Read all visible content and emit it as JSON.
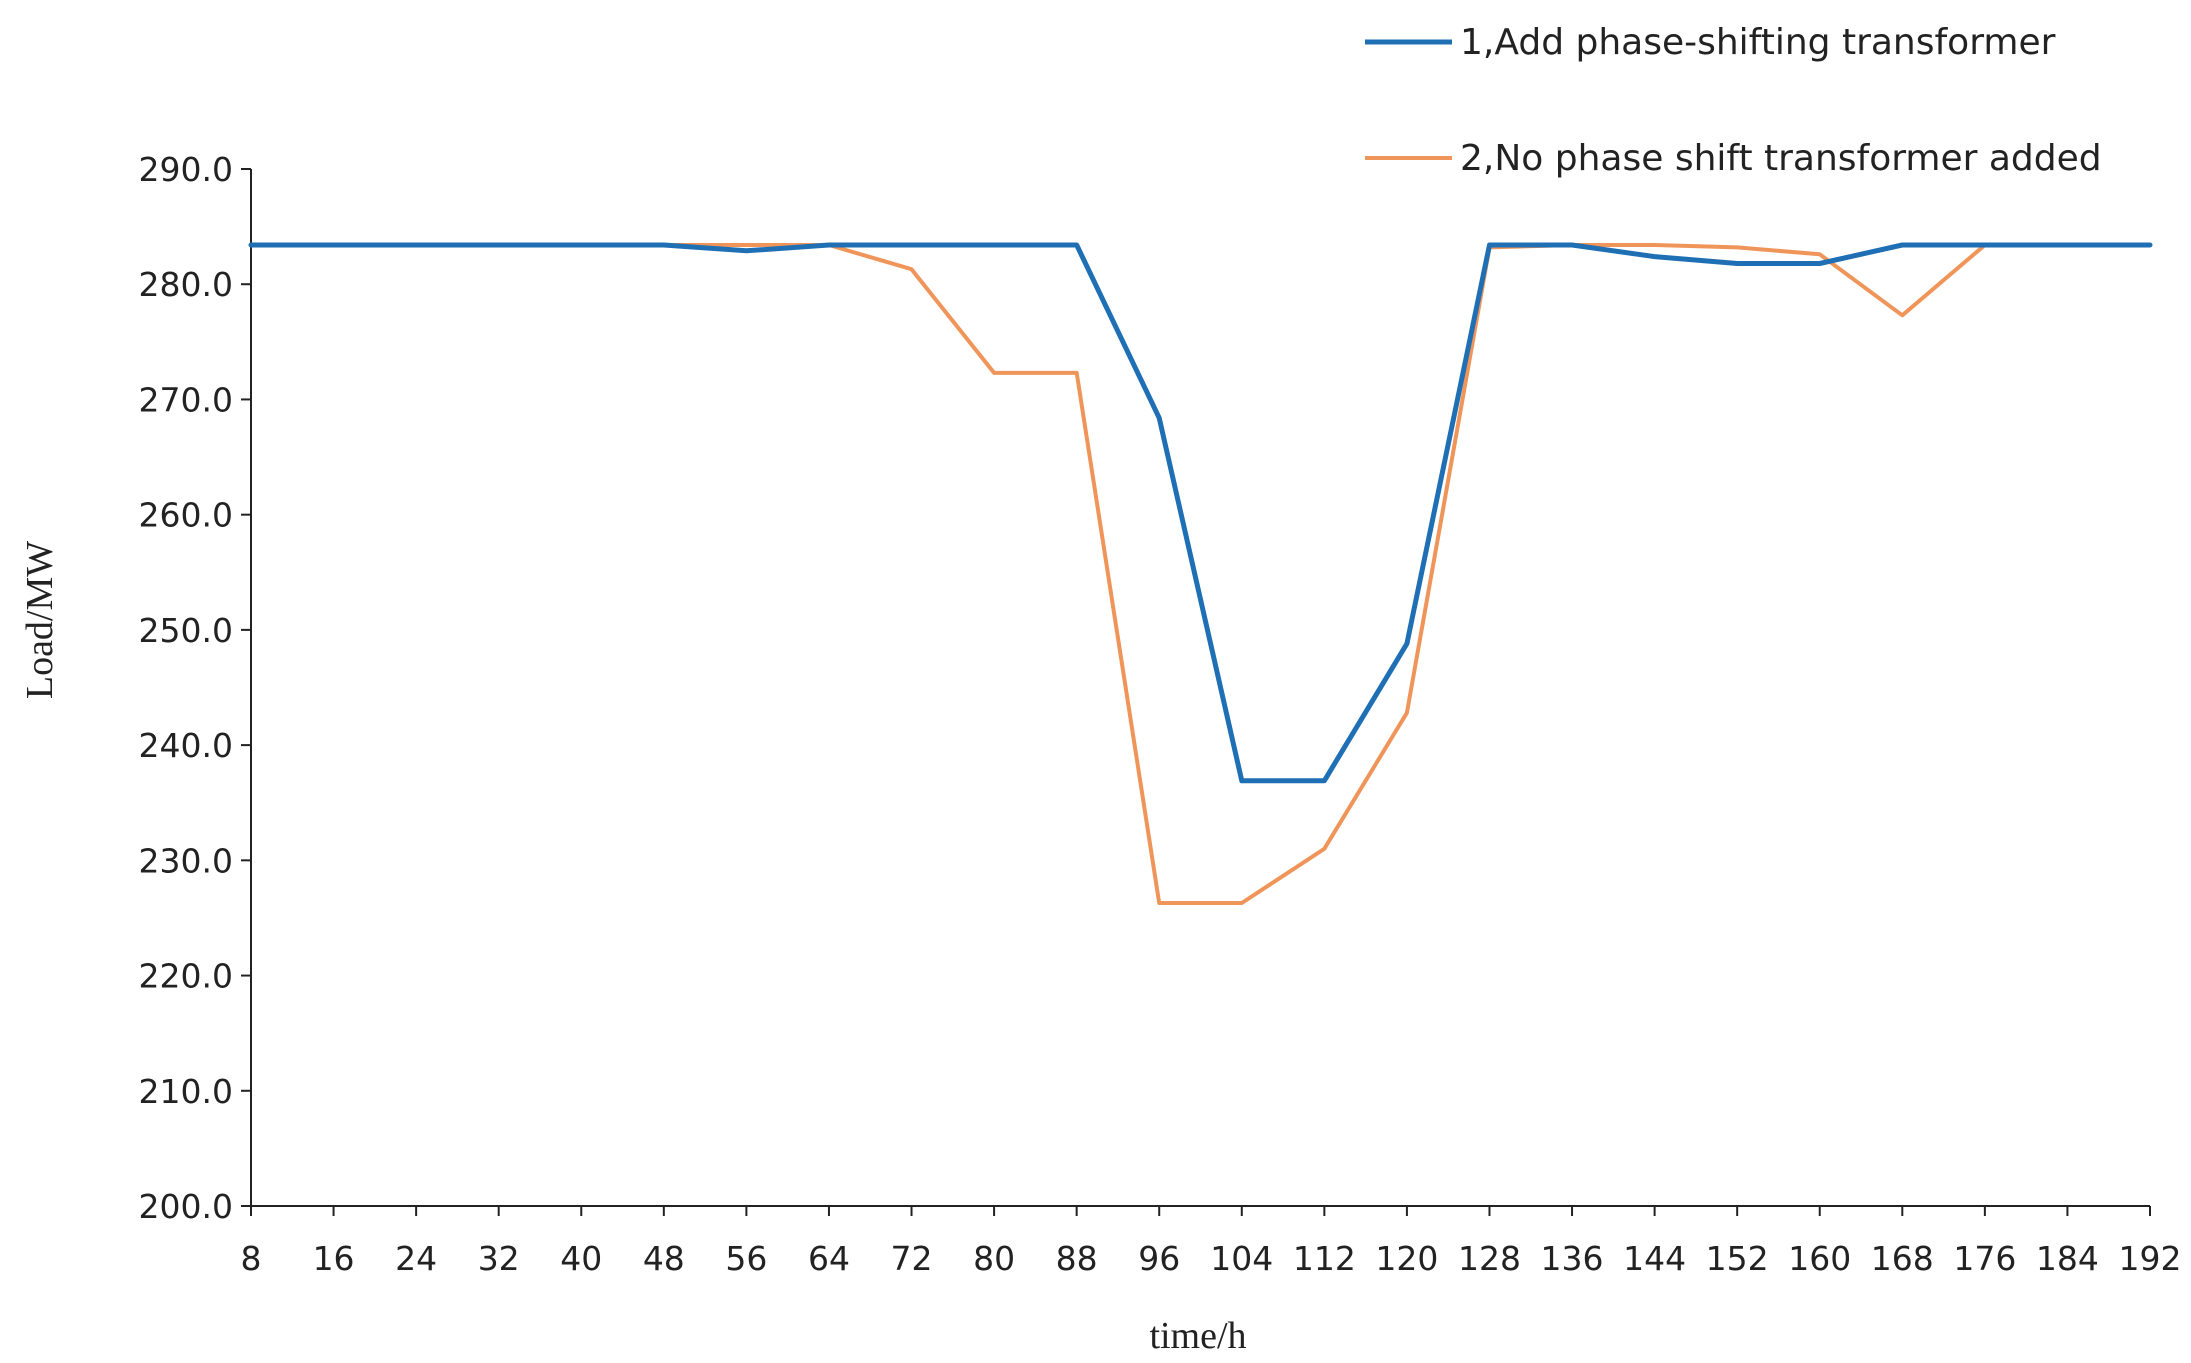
{
  "chart_data": {
    "type": "line",
    "title": "",
    "xlabel": "time/h",
    "ylabel": "Load/MW",
    "xlim": [
      8,
      192
    ],
    "ylim": [
      200,
      290
    ],
    "x_ticks": [
      "8",
      "16",
      "24",
      "32",
      "40",
      "48",
      "56",
      "64",
      "72",
      "80",
      "88",
      "96",
      "104",
      "112",
      "120",
      "128",
      "136",
      "144",
      "152",
      "160",
      "168",
      "176",
      "184",
      "192"
    ],
    "y_ticks": [
      "200.0",
      "210.0",
      "220.0",
      "230.0",
      "240.0",
      "250.0",
      "260.0",
      "270.0",
      "280.0",
      "290.0"
    ],
    "x": [
      8,
      16,
      24,
      32,
      40,
      48,
      56,
      64,
      72,
      80,
      88,
      96,
      104,
      112,
      120,
      128,
      136,
      144,
      152,
      160,
      168,
      176,
      184,
      192
    ],
    "grid": false,
    "legend_position": "top-right",
    "series": [
      {
        "name": "1,Add phase-shifting transformer",
        "color": "#1f6fb5",
        "values": [
          283.4,
          283.4,
          283.4,
          283.4,
          283.4,
          283.4,
          282.9,
          283.4,
          283.4,
          283.4,
          283.4,
          268.4,
          236.9,
          236.9,
          248.8,
          283.4,
          283.4,
          282.4,
          281.8,
          281.8,
          283.4,
          283.4,
          283.4,
          283.4
        ]
      },
      {
        "name": "2,No phase shift transformer added",
        "color": "#f0955a",
        "values": [
          283.4,
          283.4,
          283.4,
          283.4,
          283.4,
          283.4,
          283.4,
          283.4,
          281.3,
          272.3,
          272.3,
          226.3,
          226.3,
          231.0,
          242.8,
          283.2,
          283.4,
          283.4,
          283.2,
          282.6,
          277.3,
          283.4,
          283.4,
          283.4
        ]
      }
    ]
  }
}
